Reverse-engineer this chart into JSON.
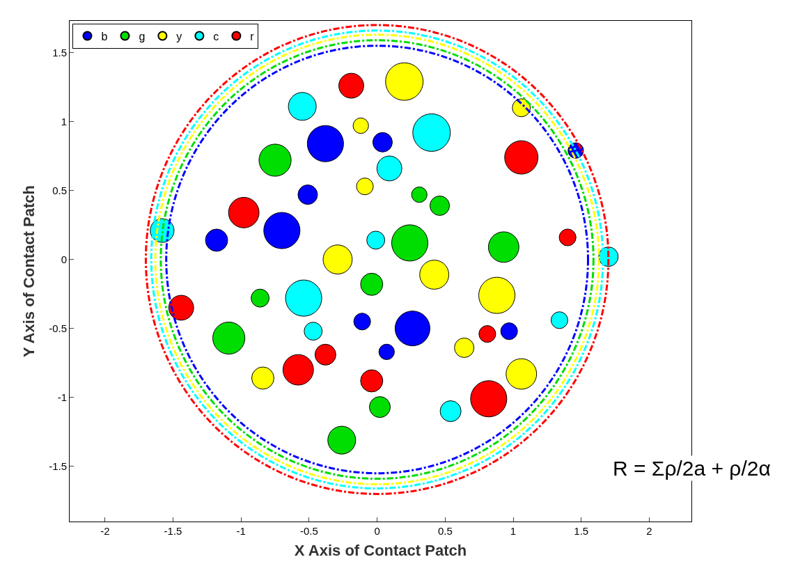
{
  "chart_data": {
    "type": "bubble",
    "xlabel": "X Axis of Contact Patch",
    "ylabel": "Y Axis of Contact Patch",
    "xlim": [
      -2.26,
      2.31
    ],
    "ylim": [
      -1.9,
      1.73
    ],
    "xticks": [
      -2,
      -1.5,
      -1,
      -0.5,
      0,
      0.5,
      1,
      1.5,
      2
    ],
    "yticks": [
      -1.5,
      -1,
      -0.5,
      0,
      0.5,
      1,
      1.5
    ],
    "legend": "top left",
    "annotations": [
      "R = Σρ/2a + ρ/2α"
    ],
    "series": [
      {
        "name": "b",
        "color": "#0000ff",
        "x": [
          -0.38,
          0.04,
          -0.51,
          -0.7,
          -1.18,
          -0.11,
          0.07,
          0.26,
          0.97,
          1.46
        ],
        "values": [
          0.84,
          0.85,
          0.47,
          0.21,
          0.14,
          -0.45,
          -0.67,
          -0.5,
          -0.52,
          0.79
        ],
        "sizes": [
          0.93,
          0.27,
          0.27,
          0.93,
          0.35,
          0.2,
          0.17,
          0.86,
          0.2,
          0.17
        ]
      },
      {
        "name": "g",
        "color": "#00dd00",
        "x": [
          -0.75,
          0.31,
          0.46,
          0.24,
          0.93,
          -0.86,
          -0.04,
          -1.09,
          0.02,
          -0.26
        ],
        "values": [
          0.72,
          0.47,
          0.39,
          0.12,
          0.09,
          -0.28,
          -0.18,
          -0.57,
          -1.07,
          -1.31
        ],
        "sizes": [
          0.73,
          0.17,
          0.27,
          0.93,
          0.66,
          0.23,
          0.35,
          0.73,
          0.31,
          0.55
        ]
      },
      {
        "name": "y",
        "color": "#ffff00",
        "x": [
          0.2,
          -0.12,
          -0.09,
          1.06,
          -0.29,
          0.42,
          0.88,
          0.64,
          1.06,
          -0.84
        ],
        "values": [
          1.29,
          0.97,
          0.53,
          1.1,
          0.0,
          -0.11,
          -0.26,
          -0.64,
          -0.83,
          -0.86
        ],
        "sizes": [
          1,
          0.17,
          0.2,
          0.23,
          0.6,
          0.6,
          0.93,
          0.27,
          0.66,
          0.35
        ]
      },
      {
        "name": "c",
        "color": "#00ffff",
        "x": [
          -0.55,
          0.4,
          0.09,
          -1.58,
          -0.01,
          1.7,
          -0.54,
          -0.47,
          1.34,
          0.54
        ],
        "values": [
          1.11,
          0.92,
          0.66,
          0.21,
          0.14,
          0.02,
          -0.28,
          -0.52,
          -0.44,
          -1.1
        ],
        "sizes": [
          0.55,
          1,
          0.44,
          0.4,
          0.23,
          0.27,
          0.93,
          0.23,
          0.2,
          0.31
        ]
      },
      {
        "name": "r",
        "color": "#ff0000",
        "x": [
          -0.19,
          1.06,
          -0.98,
          1.4,
          -1.44,
          -0.38,
          -0.58,
          -0.04,
          0.81,
          0.82
        ],
        "values": [
          1.26,
          0.74,
          0.34,
          0.16,
          -0.35,
          -0.69,
          -0.8,
          -0.88,
          -0.54,
          -1.01
        ],
        "sizes": [
          0.44,
          0.79,
          0.66,
          0.2,
          0.44,
          0.31,
          0.66,
          0.35,
          0.2,
          0.93
        ]
      }
    ]
  }
}
